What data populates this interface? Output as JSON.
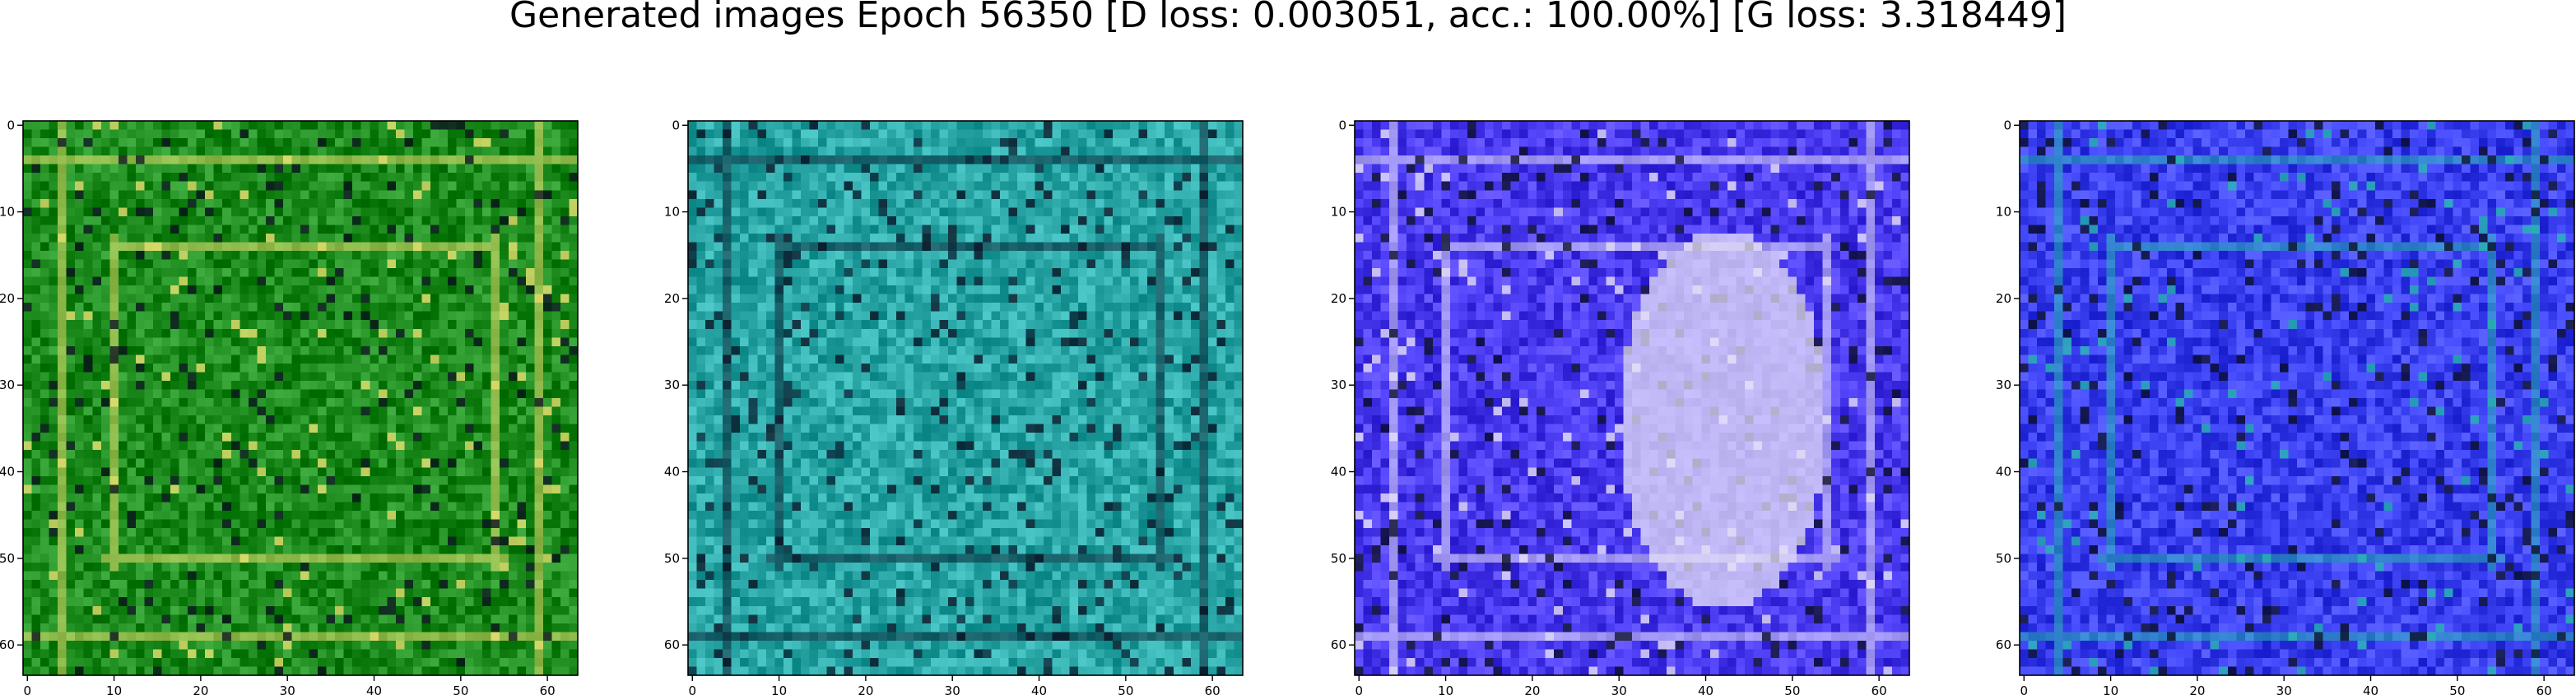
{
  "title": "Generated images Epoch 56350 [D loss: 0.003051, acc.: 100.00%] [G loss: 3.318449]",
  "chart_data": [
    {
      "type": "image",
      "grid_size": [
        64,
        64
      ],
      "xlim": [
        -0.5,
        63.5
      ],
      "ylim": [
        63.5,
        -0.5
      ],
      "x_ticks": [
        0,
        10,
        20,
        30,
        40,
        50,
        60
      ],
      "y_ticks": [
        0,
        10,
        20,
        30,
        40,
        50,
        60
      ],
      "dominant_color": "#1c8a1c",
      "accent_color": "#e8e070"
    },
    {
      "type": "image",
      "grid_size": [
        64,
        64
      ],
      "xlim": [
        -0.5,
        63.5
      ],
      "ylim": [
        63.5,
        -0.5
      ],
      "x_ticks": [
        0,
        10,
        20,
        30,
        40,
        50,
        60
      ],
      "y_ticks": [
        0,
        10,
        20,
        30,
        40,
        50,
        60
      ],
      "dominant_color": "#2aa6a6",
      "accent_color": "#0a2a3a"
    },
    {
      "type": "image",
      "grid_size": [
        64,
        64
      ],
      "xlim": [
        -0.5,
        63.5
      ],
      "ylim": [
        63.5,
        -0.5
      ],
      "x_ticks": [
        0,
        10,
        20,
        30,
        40,
        50,
        60
      ],
      "y_ticks": [
        0,
        10,
        20,
        30,
        40,
        50,
        60
      ],
      "dominant_color": "#4a3af0",
      "accent_color": "#e6e0f6"
    },
    {
      "type": "image",
      "grid_size": [
        64,
        64
      ],
      "xlim": [
        -0.5,
        63.5
      ],
      "ylim": [
        63.5,
        -0.5
      ],
      "x_ticks": [
        0,
        10,
        20,
        30,
        40,
        50,
        60
      ],
      "y_ticks": [
        0,
        10,
        20,
        30,
        40,
        50,
        60
      ],
      "dominant_color": "#3a40f0",
      "accent_color": "#28b4b0"
    }
  ]
}
